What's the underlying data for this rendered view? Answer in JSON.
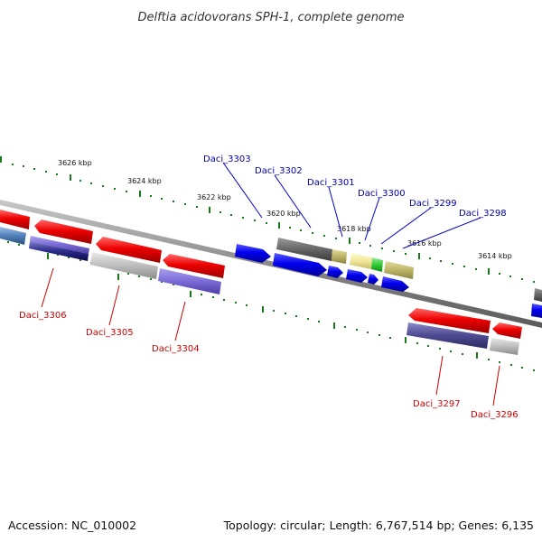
{
  "title": "Delftia acidovorans SPH-1, complete genome",
  "footer": {
    "accession": "Accession: NC_010002",
    "summary": "Topology: circular; Length: 6,767,514 bp; Genes: 6,135"
  },
  "ticks": [
    "3626 kbp",
    "3624 kbp",
    "3622 kbp",
    "3620 kbp",
    "3618 kbp",
    "3616 kbp",
    "3614 kbp"
  ],
  "forward_genes": [
    "Daci_3303",
    "Daci_3302",
    "Daci_3301",
    "Daci_3300",
    "Daci_3299",
    "Daci_3298"
  ],
  "reverse_genes": [
    "Daci_3306",
    "Daci_3305",
    "Daci_3304",
    "Daci_3297",
    "Daci_3296"
  ],
  "colors": {
    "forward_strand": "#0000ee",
    "reverse_strand": "#ee0000",
    "forward_label": "#0000aa",
    "reverse_label": "#cc0000",
    "tick": "#1a7a1a",
    "backbone": "#8a8a8a"
  }
}
